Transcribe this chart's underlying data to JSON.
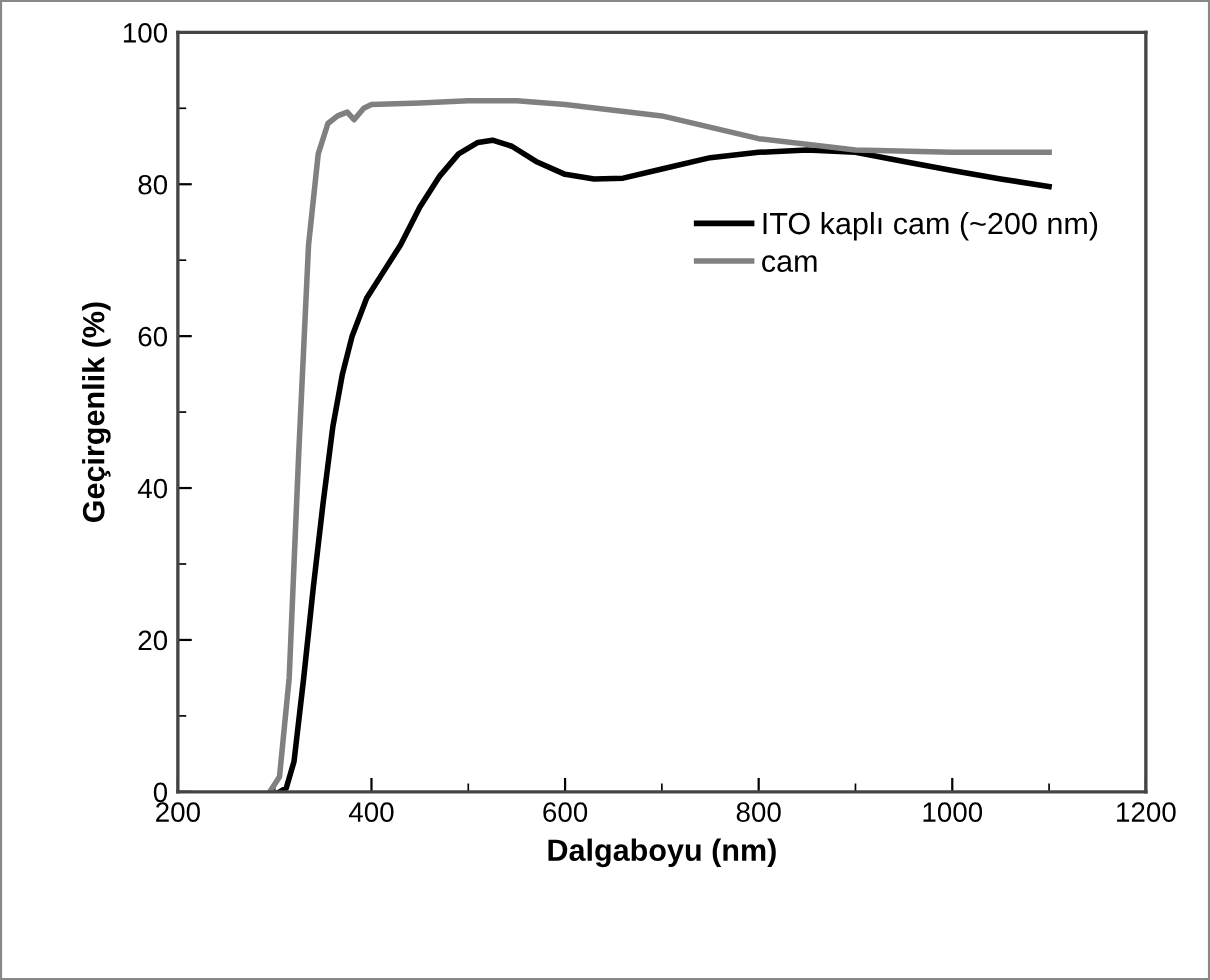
{
  "chart_data": {
    "type": "line",
    "xlabel": "Dalgaboyu (nm)",
    "ylabel": "Geçirgenlik (%)",
    "xlim": [
      200,
      1200
    ],
    "xticks": [
      200,
      400,
      600,
      800,
      1000,
      1200
    ],
    "ylim": [
      0,
      100
    ],
    "yticks": [
      0,
      20,
      40,
      60,
      80,
      100
    ],
    "grid": false,
    "legend": "right",
    "marker": "none",
    "line_style": "solid",
    "series": [
      {
        "name": "ITO kaplı cam (~200 nm)",
        "color": "#000000",
        "x": [
          305,
          312,
          320,
          330,
          340,
          350,
          360,
          370,
          380,
          395,
          410,
          430,
          450,
          470,
          490,
          510,
          525,
          545,
          570,
          600,
          630,
          660,
          700,
          750,
          800,
          850,
          900,
          950,
          1000,
          1050,
          1100
        ],
        "values": [
          0,
          0.5,
          4,
          15,
          27,
          38,
          48,
          55,
          60,
          65,
          68,
          72,
          77,
          81,
          84,
          85.5,
          85.8,
          85,
          83,
          81.3,
          80.7,
          80.8,
          82,
          83.5,
          84.2,
          84.5,
          84.2,
          83,
          81.8,
          80.7,
          79.7
        ]
      },
      {
        "name": "cam",
        "color": "#808080",
        "x": [
          295,
          305,
          315,
          325,
          335,
          345,
          355,
          365,
          375,
          382,
          392,
          400,
          450,
          500,
          550,
          600,
          700,
          800,
          900,
          1000,
          1100
        ],
        "values": [
          0,
          2,
          15,
          45,
          72,
          84,
          88,
          89,
          89.5,
          88.5,
          90,
          90.5,
          90.7,
          91,
          91,
          90.5,
          89,
          86,
          84.5,
          84.2,
          84.2
        ]
      }
    ]
  }
}
